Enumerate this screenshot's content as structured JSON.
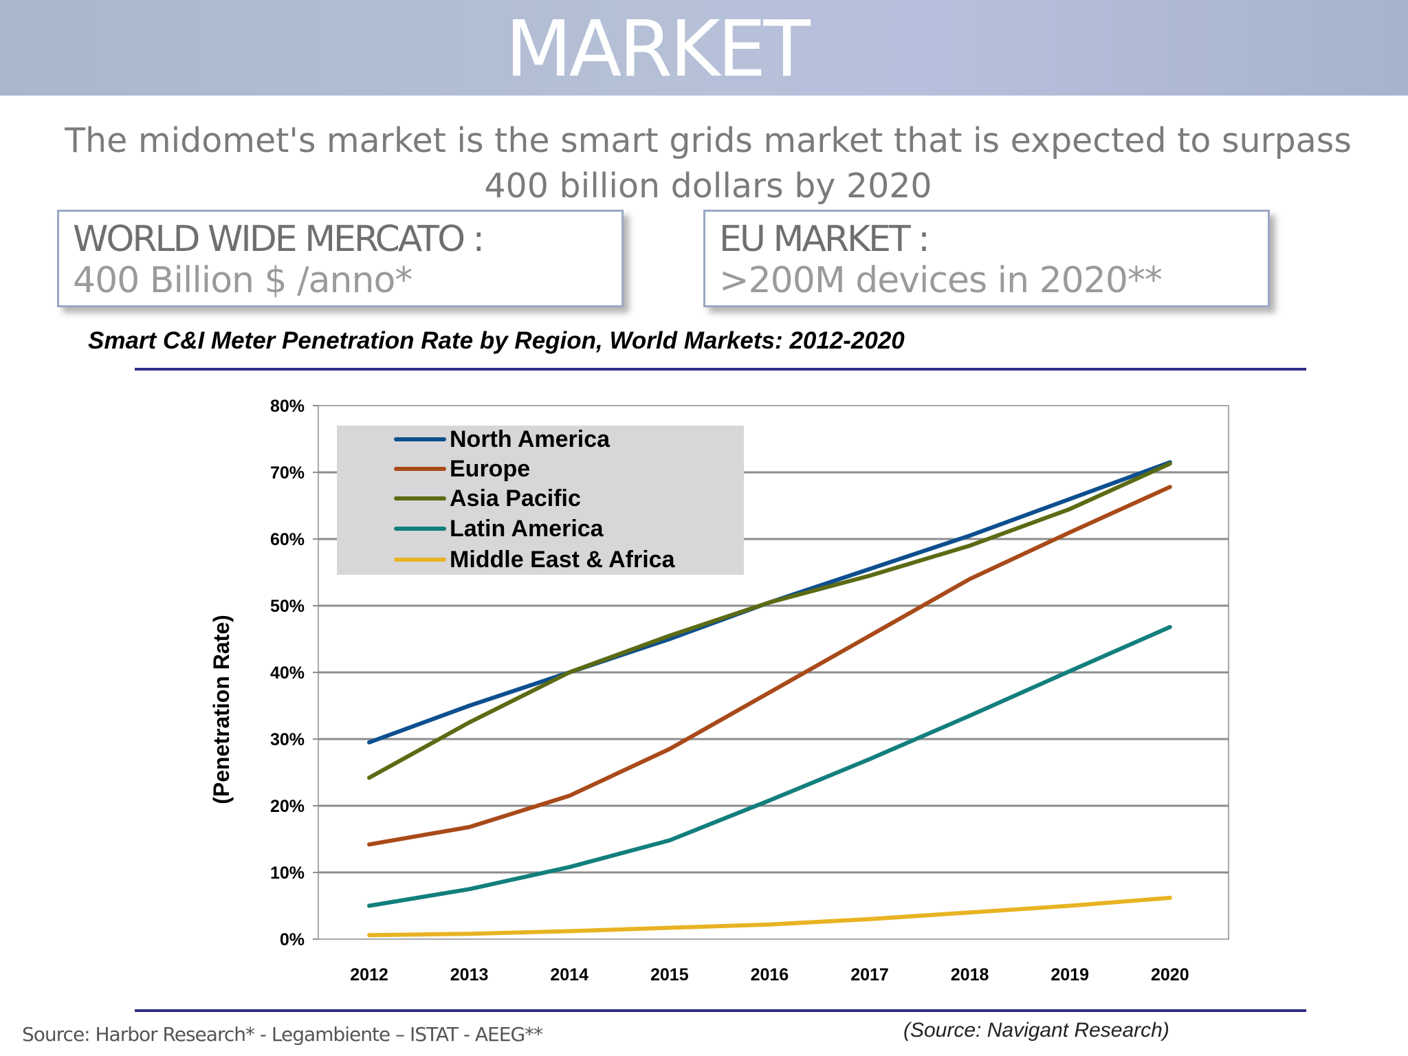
{
  "header": {
    "title": "MARKET"
  },
  "subtitle": "The midomet's market is the smart grids market that is expected to surpass 400 billion dollars by 2020",
  "boxes": {
    "world_wide": {
      "title": "WORLD WIDE MERCATO :",
      "value": "400 Billion $ /anno*"
    },
    "eu": {
      "title": "EU MARKET :",
      "value": ">200M devices in 2020**"
    }
  },
  "footer": {
    "source_left": "Source: Harbor Research* - Legambiente – ISTAT - AEEG**",
    "source_right": "(Source: Navigant Research)"
  },
  "colors": {
    "north_america": "#0d4f8f",
    "europe": "#a84a19",
    "asia_pacific": "#5b6b14",
    "latin_america": "#127f7d",
    "middle_east_africa": "#e8b323",
    "accent_rule": "#2d2f86"
  },
  "chart_data": {
    "type": "line",
    "title": "Smart C&I Meter Penetration Rate by Region, World Markets: 2012-2020",
    "ylabel": "(Penetration Rate)",
    "xlabel": "",
    "x": [
      "2012",
      "2013",
      "2014",
      "2015",
      "2016",
      "2017",
      "2018",
      "2019",
      "2020"
    ],
    "ylim": [
      0,
      80
    ],
    "yticks": [
      "0%",
      "10%",
      "20%",
      "30%",
      "40%",
      "50%",
      "60%",
      "70%",
      "80%"
    ],
    "grid": true,
    "legend_position": "top-left",
    "series": [
      {
        "name": "North America",
        "color": "#0d4f8f",
        "values": [
          29.5,
          35,
          40,
          45,
          50.5,
          55.5,
          60.5,
          66,
          71.5
        ]
      },
      {
        "name": "Europe",
        "color": "#a84a19",
        "values": [
          14.2,
          16.8,
          21.5,
          28.5,
          37,
          45.5,
          54,
          61,
          67.8
        ]
      },
      {
        "name": "Asia Pacific",
        "color": "#5b6b14",
        "values": [
          24.2,
          32.5,
          40,
          45.5,
          50.5,
          54.5,
          59,
          64.5,
          71.3
        ]
      },
      {
        "name": "Latin America",
        "color": "#127f7d",
        "values": [
          5,
          7.5,
          10.8,
          14.8,
          20.8,
          27,
          33.5,
          40.2,
          46.8
        ]
      },
      {
        "name": "Middle East & Africa",
        "color": "#e8b323",
        "values": [
          0.6,
          0.8,
          1.2,
          1.7,
          2.2,
          3,
          4,
          5,
          6.2
        ]
      }
    ]
  }
}
